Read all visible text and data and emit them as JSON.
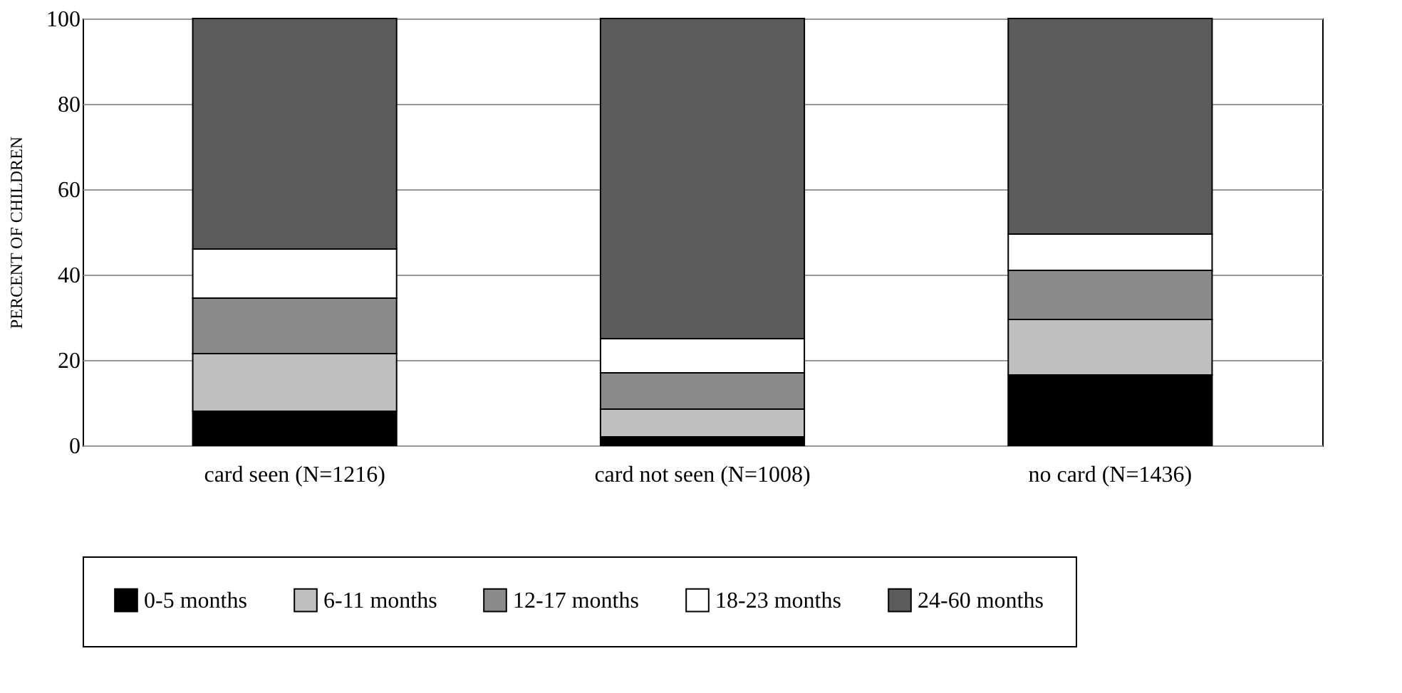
{
  "chart_data": {
    "type": "bar",
    "stacked": true,
    "ylabel": "PERCENT OF CHILDREN",
    "categories": [
      "card seen (N=1216)",
      "card not seen (N=1008)",
      "no card (N=1436)"
    ],
    "series": [
      {
        "name": "0-5 months",
        "color": "#000000",
        "values": [
          8,
          2,
          16.5
        ]
      },
      {
        "name": "6-11 months",
        "color": "#c0c0c0",
        "values": [
          13.5,
          6.5,
          13
        ]
      },
      {
        "name": "12-17 months",
        "color": "#8a8a8a",
        "values": [
          13,
          8.5,
          11.5
        ]
      },
      {
        "name": "18-23 months",
        "color": "#ffffff",
        "values": [
          11.5,
          8,
          8.5
        ]
      },
      {
        "name": "24-60 months",
        "color": "#5c5c5c",
        "values": [
          54,
          75,
          50.5
        ]
      }
    ],
    "ylim": [
      0,
      100
    ],
    "yticks": [
      0,
      20,
      40,
      60,
      80,
      100
    ],
    "grid": "y",
    "legend": "bottom"
  }
}
